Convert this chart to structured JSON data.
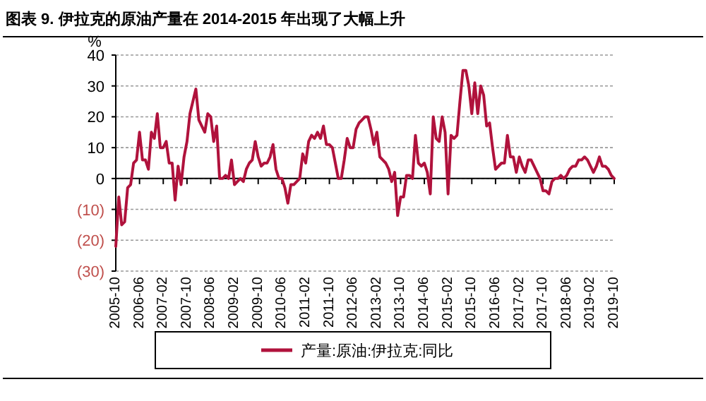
{
  "chart_data": {
    "type": "line",
    "title": "图表 9. 伊拉克的原油产量在 2014-2015 年出现了大幅上升",
    "ylabel": "%",
    "x": [
      "2005-10",
      "2005-11",
      "2005-12",
      "2006-01",
      "2006-02",
      "2006-03",
      "2006-04",
      "2006-05",
      "2006-06",
      "2006-07",
      "2006-08",
      "2006-09",
      "2006-10",
      "2006-11",
      "2006-12",
      "2007-01",
      "2007-02",
      "2007-03",
      "2007-04",
      "2007-05",
      "2007-06",
      "2007-07",
      "2007-08",
      "2007-09",
      "2007-10",
      "2007-11",
      "2007-12",
      "2008-01",
      "2008-02",
      "2008-03",
      "2008-04",
      "2008-05",
      "2008-06",
      "2008-07",
      "2008-08",
      "2008-09",
      "2008-10",
      "2008-11",
      "2008-12",
      "2009-01",
      "2009-02",
      "2009-03",
      "2009-04",
      "2009-05",
      "2009-06",
      "2009-07",
      "2009-08",
      "2009-09",
      "2009-10",
      "2009-11",
      "2009-12",
      "2010-01",
      "2010-02",
      "2010-03",
      "2010-04",
      "2010-05",
      "2010-06",
      "2010-07",
      "2010-08",
      "2010-09",
      "2010-10",
      "2010-11",
      "2010-12",
      "2011-01",
      "2011-02",
      "2011-03",
      "2011-04",
      "2011-05",
      "2011-06",
      "2011-07",
      "2011-08",
      "2011-09",
      "2011-10",
      "2011-11",
      "2011-12",
      "2012-01",
      "2012-02",
      "2012-03",
      "2012-04",
      "2012-05",
      "2012-06",
      "2012-07",
      "2012-08",
      "2012-09",
      "2012-10",
      "2012-11",
      "2012-12",
      "2013-01",
      "2013-02",
      "2013-03",
      "2013-04",
      "2013-05",
      "2013-06",
      "2013-07",
      "2013-08",
      "2013-09",
      "2013-10",
      "2013-11",
      "2013-12",
      "2014-01",
      "2014-02",
      "2014-03",
      "2014-04",
      "2014-05",
      "2014-06",
      "2014-07",
      "2014-08",
      "2014-09",
      "2014-10",
      "2014-11",
      "2014-12",
      "2015-01",
      "2015-02",
      "2015-03",
      "2015-04",
      "2015-05",
      "2015-06",
      "2015-07",
      "2015-08",
      "2015-09",
      "2015-10",
      "2015-11",
      "2015-12",
      "2016-01",
      "2016-02",
      "2016-03",
      "2016-04",
      "2016-05",
      "2016-06",
      "2016-07",
      "2016-08",
      "2016-09",
      "2016-10",
      "2016-11",
      "2016-12",
      "2017-01",
      "2017-02",
      "2017-03",
      "2017-04",
      "2017-05",
      "2017-06",
      "2017-07",
      "2017-08",
      "2017-09",
      "2017-10",
      "2017-11",
      "2017-12",
      "2018-01",
      "2018-02",
      "2018-03",
      "2018-04",
      "2018-05",
      "2018-06",
      "2018-07",
      "2018-08",
      "2018-09",
      "2018-10",
      "2018-11",
      "2018-12",
      "2019-01",
      "2019-02",
      "2019-03",
      "2019-04",
      "2019-05",
      "2019-06",
      "2019-07",
      "2019-08",
      "2019-09",
      "2019-10"
    ],
    "series": [
      {
        "name": "产量:原油:伊拉克:同比",
        "color": "#b0123c",
        "values": [
          -22,
          -6,
          -15,
          -14,
          -3,
          -2,
          5,
          6,
          15,
          6,
          6,
          3,
          15,
          13,
          21,
          10,
          10,
          12,
          5,
          5,
          -7,
          4,
          -2,
          7,
          12,
          21,
          25,
          29,
          19,
          17,
          15,
          21,
          20,
          12,
          17,
          0,
          0,
          1,
          0,
          6,
          -2,
          -1,
          0,
          -1,
          3,
          5,
          6,
          12,
          7,
          4,
          5,
          5,
          7,
          11,
          3,
          0,
          0,
          -3,
          -8,
          -2,
          -2,
          -1,
          0,
          8,
          5,
          12,
          14,
          13,
          15,
          13,
          17,
          11,
          11,
          10,
          5,
          0,
          0,
          6,
          13,
          10,
          10,
          16,
          18,
          19,
          20,
          20,
          16,
          11,
          15,
          7,
          6,
          5,
          3,
          -1,
          2,
          -12,
          -6,
          -6,
          1,
          1,
          0,
          14,
          5,
          4,
          5,
          2,
          -5,
          20,
          13,
          12,
          20,
          15,
          -5,
          14,
          13,
          14,
          25,
          35,
          35,
          30,
          21,
          31,
          21,
          30,
          27,
          17,
          18,
          10,
          3,
          4,
          5,
          5,
          14,
          7,
          7,
          2,
          7,
          4,
          2,
          6,
          6,
          4,
          2,
          0,
          -4,
          -4,
          -5,
          -1,
          0,
          0,
          1,
          0,
          1,
          3,
          4,
          4,
          6,
          6,
          7,
          6,
          4,
          2,
          4,
          7,
          4,
          4,
          3,
          1,
          0
        ]
      }
    ],
    "xlim": [
      "2005-10",
      "2019-10"
    ],
    "xticks": [
      "2005-10",
      "2006-06",
      "2007-02",
      "2007-10",
      "2008-06",
      "2009-02",
      "2009-10",
      "2010-06",
      "2011-02",
      "2011-10",
      "2012-06",
      "2013-02",
      "2013-10",
      "2014-06",
      "2015-02",
      "2015-10",
      "2016-06",
      "2017-02",
      "2017-10",
      "2018-06",
      "2019-02",
      "2019-10"
    ],
    "ylim": [
      -30,
      40
    ],
    "yticks": [
      40,
      30,
      20,
      10,
      0,
      {
        "value": -10,
        "label": "(10)"
      },
      {
        "value": -20,
        "label": "(20)"
      },
      {
        "value": -30,
        "label": "(30)"
      }
    ],
    "grid": "y",
    "legend": "bottom",
    "line_style": "solid",
    "marker": "none"
  }
}
